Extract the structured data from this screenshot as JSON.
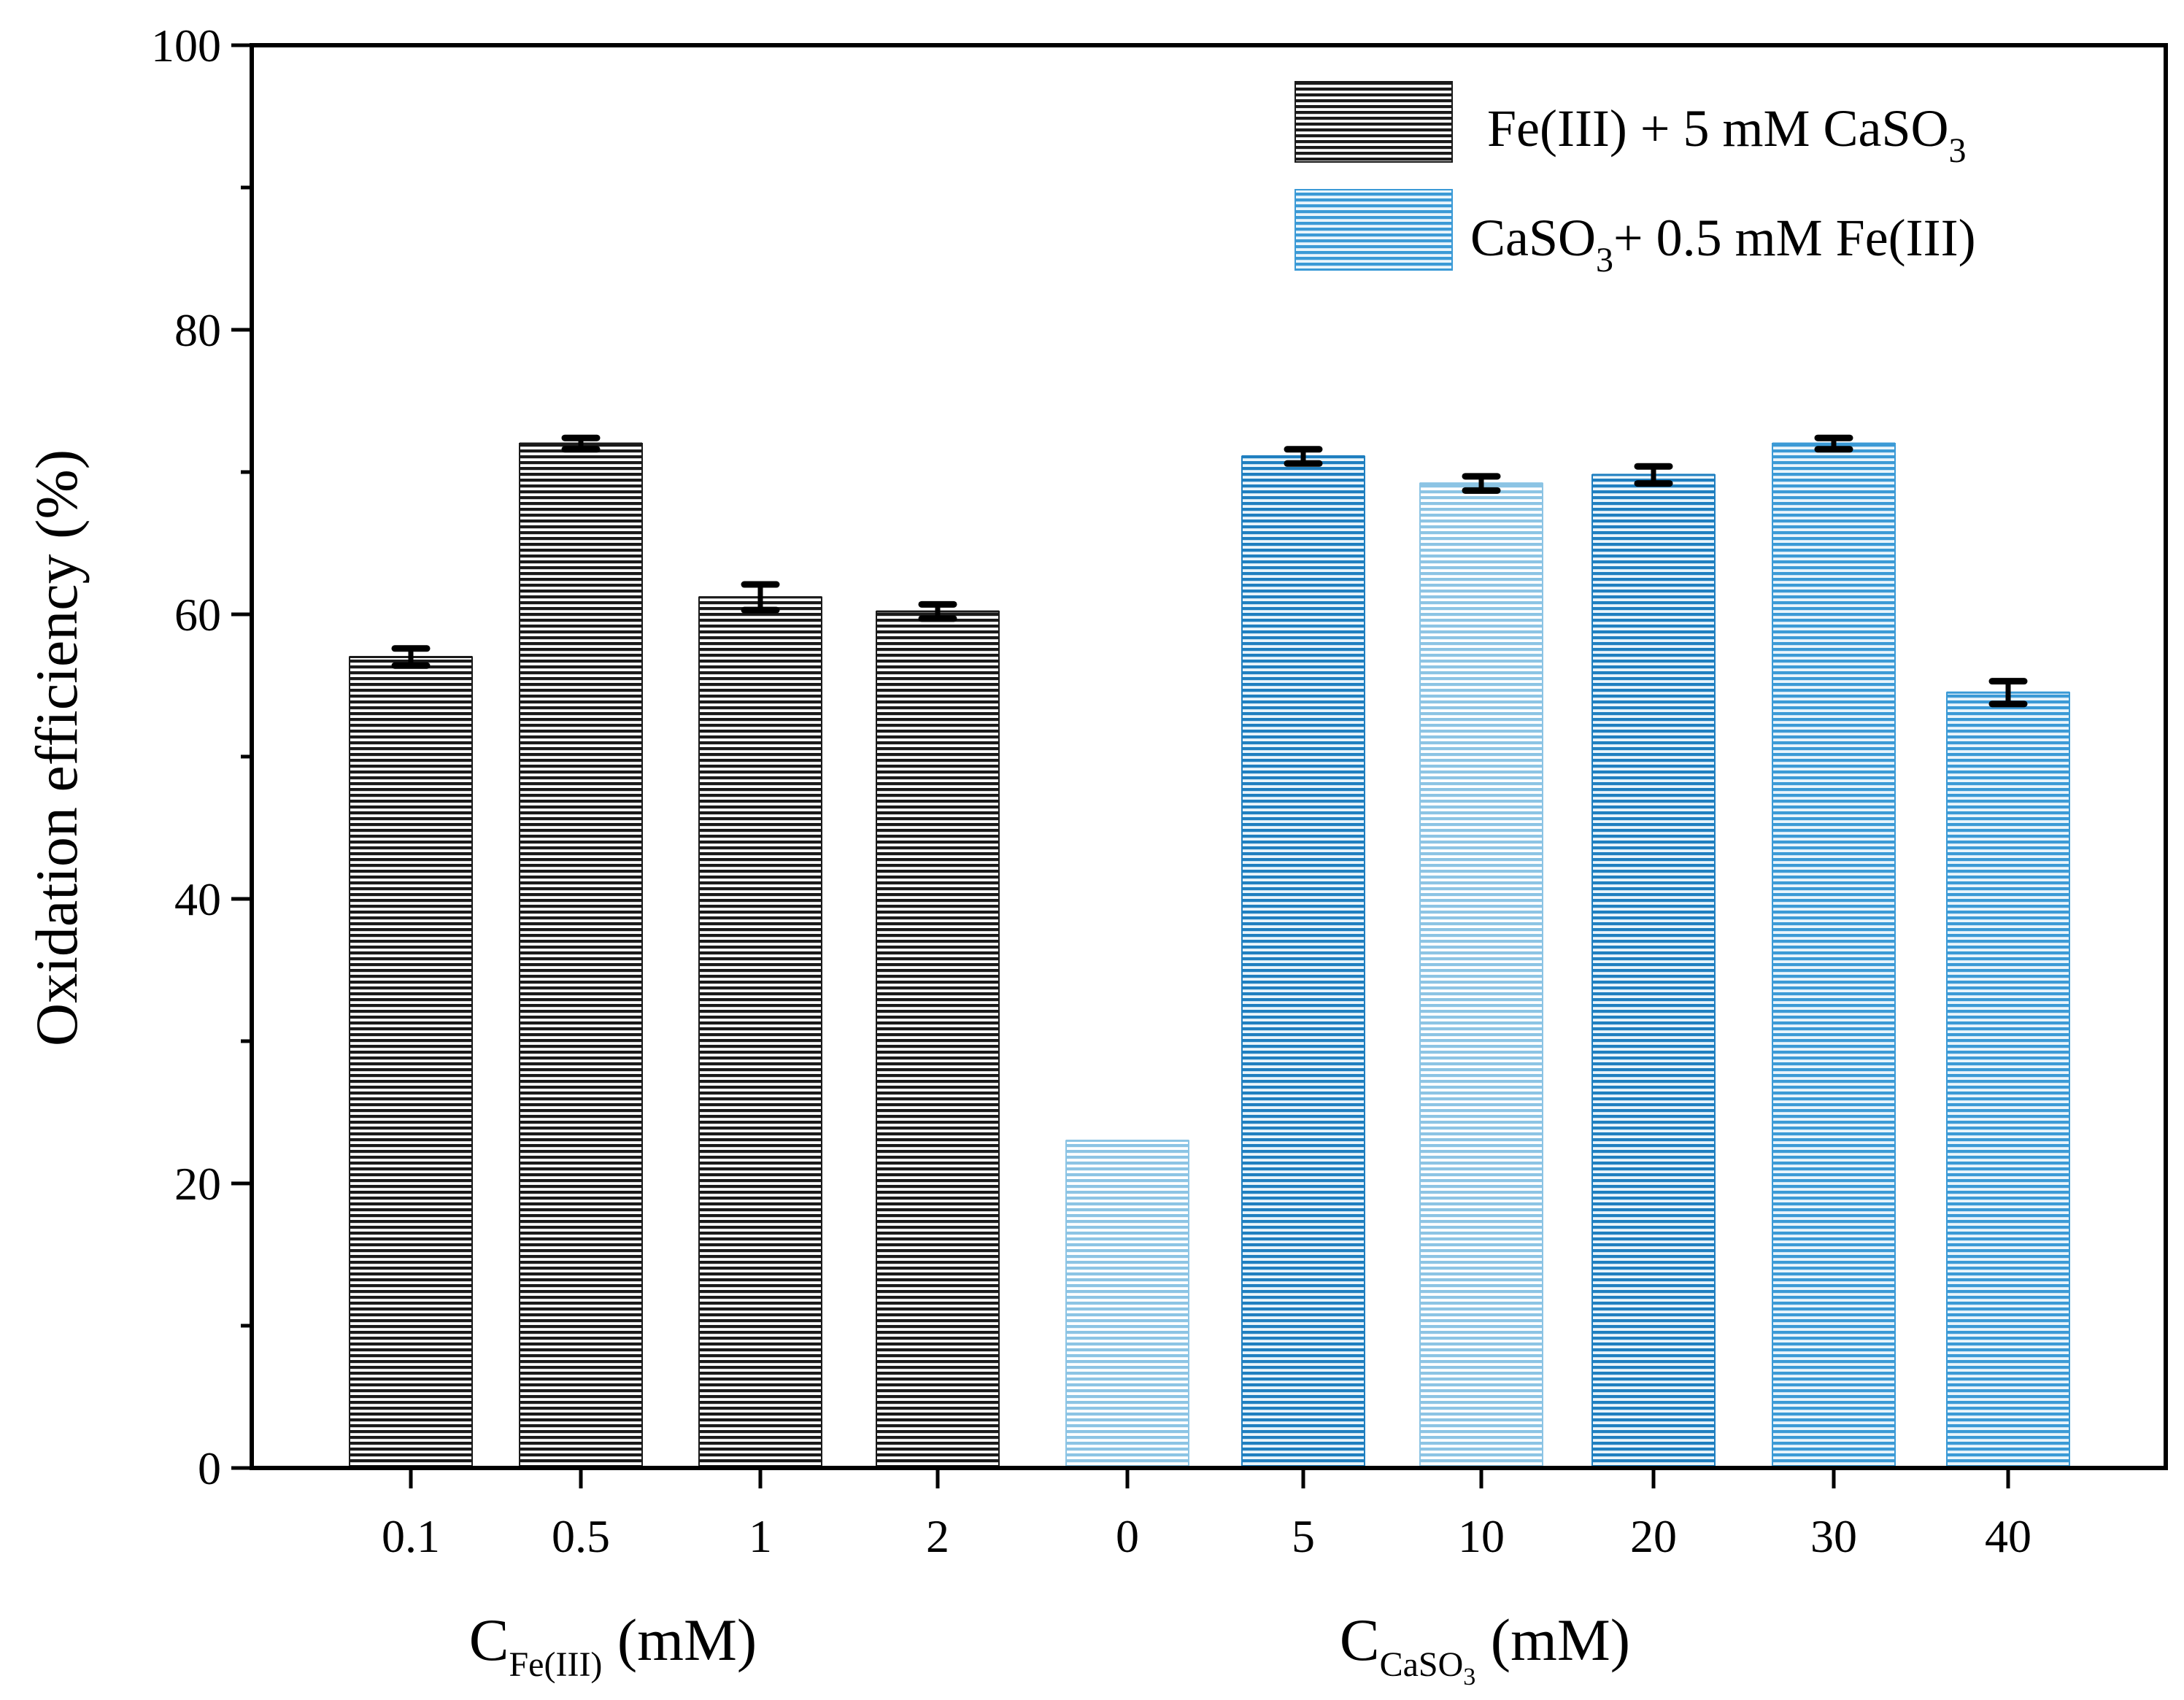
{
  "chart_data": {
    "type": "bar",
    "ylabel": "Oxidation efficiency (%)",
    "ylim": [
      0,
      100
    ],
    "yticks": [
      "0",
      "20",
      "40",
      "60",
      "80",
      "100"
    ],
    "grid": false,
    "legend_position": "top-right",
    "colors": {
      "black_series": "#1a1a1a",
      "blue_series": "#1f7fc0",
      "blue_light": "#8cc4e4",
      "error_bar": "#000000"
    },
    "groups": [
      {
        "axis_title_main": "C",
        "axis_title_sub": "Fe(III)",
        "axis_title_unit": " (mM)"
      },
      {
        "axis_title_main": "C",
        "axis_title_sub_main": "CaSO",
        "axis_title_sub_sub": "3",
        "axis_title_unit": " (mM)"
      }
    ],
    "series": [
      {
        "name": "Fe(III) + 5 mM CaSO3",
        "legend_main": "Fe(III) + 5 mM CaSO",
        "legend_sub": "3",
        "legend_tail": "",
        "style": "black"
      },
      {
        "name": "CaSO3+ 0.5 mM Fe(III)",
        "legend_main": "CaSO",
        "legend_sub": "3",
        "legend_tail": "+ 0.5 mM Fe(III)",
        "style": "blue"
      }
    ],
    "categories": [
      "0.1",
      "0.5",
      "1",
      "2",
      "0",
      "5",
      "10",
      "20",
      "30",
      "40"
    ],
    "bars": [
      {
        "category": "0.1",
        "value": 57.0,
        "error": 0.6,
        "series": 0,
        "group": 0,
        "shade": "dark"
      },
      {
        "category": "0.5",
        "value": 72.0,
        "error": 0.4,
        "series": 0,
        "group": 0,
        "shade": "dark"
      },
      {
        "category": "1",
        "value": 61.2,
        "error": 0.9,
        "series": 0,
        "group": 0,
        "shade": "dark"
      },
      {
        "category": "2",
        "value": 60.2,
        "error": 0.5,
        "series": 0,
        "group": 0,
        "shade": "dark"
      },
      {
        "category": "0",
        "value": 23.0,
        "error": 0,
        "series": 1,
        "group": 1,
        "shade": "light"
      },
      {
        "category": "5",
        "value": 71.1,
        "error": 0.5,
        "series": 1,
        "group": 1,
        "shade": "dark"
      },
      {
        "category": "10",
        "value": 69.2,
        "error": 0.5,
        "series": 1,
        "group": 1,
        "shade": "light"
      },
      {
        "category": "20",
        "value": 69.8,
        "error": 0.6,
        "series": 1,
        "group": 1,
        "shade": "dark"
      },
      {
        "category": "30",
        "value": 72.0,
        "error": 0.4,
        "series": 1,
        "group": 1,
        "shade": "medium"
      },
      {
        "category": "40",
        "value": 54.5,
        "error": 0.8,
        "series": 1,
        "group": 1,
        "shade": "medium"
      }
    ]
  }
}
